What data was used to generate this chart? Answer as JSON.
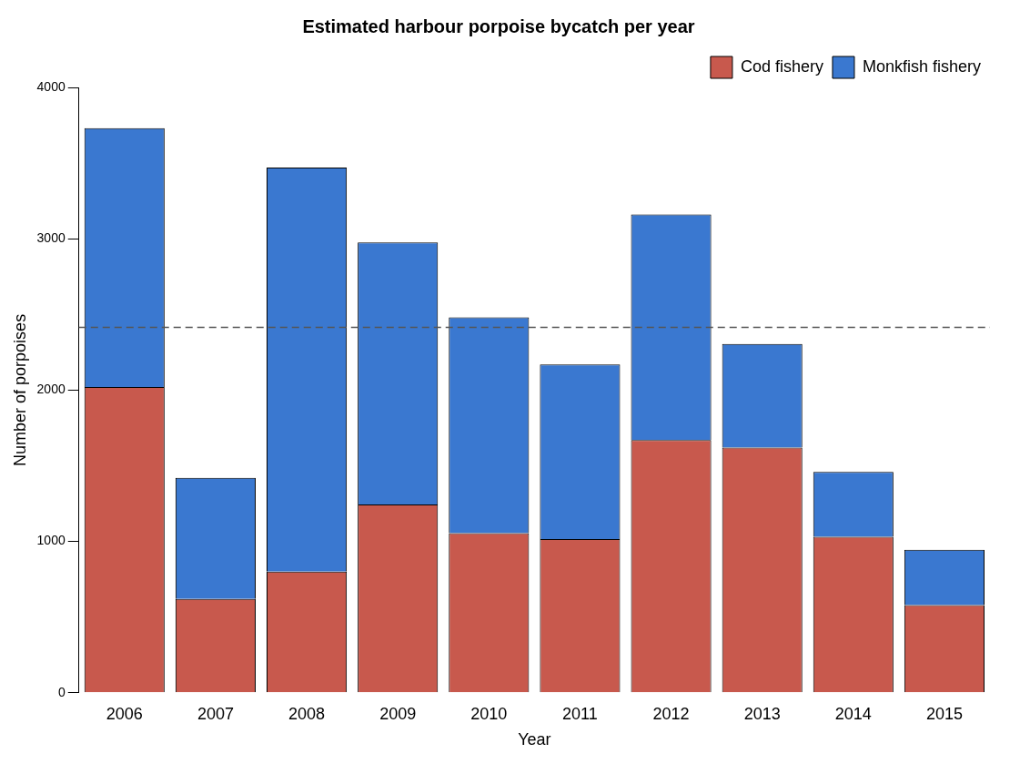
{
  "chart_data": {
    "type": "bar",
    "title": "Estimated harbour porpoise bycatch per year",
    "xlabel": "Year",
    "ylabel": "Number of porpoises",
    "categories": [
      "2006",
      "2007",
      "2008",
      "2009",
      "2010",
      "2011",
      "2012",
      "2013",
      "2014",
      "2015"
    ],
    "stacked": true,
    "series": [
      {
        "name": "Cod fishery",
        "color": "#c8594d",
        "values": [
          2020,
          620,
          800,
          1245,
          1055,
          1015,
          1670,
          1620,
          1030,
          580
        ]
      },
      {
        "name": "Monkfish fishery",
        "color": "#3a78d0",
        "values": [
          1710,
          800,
          2670,
          1730,
          1425,
          1155,
          1490,
          685,
          430,
          365
        ]
      }
    ],
    "ylim": [
      0,
      4000
    ],
    "yticks": [
      0,
      1000,
      2000,
      3000,
      4000
    ],
    "ref_lines": [
      {
        "axis": "y",
        "value": 2415,
        "line_style": "dashed",
        "color": "#555555"
      }
    ],
    "grid": false,
    "legend": "top right"
  }
}
